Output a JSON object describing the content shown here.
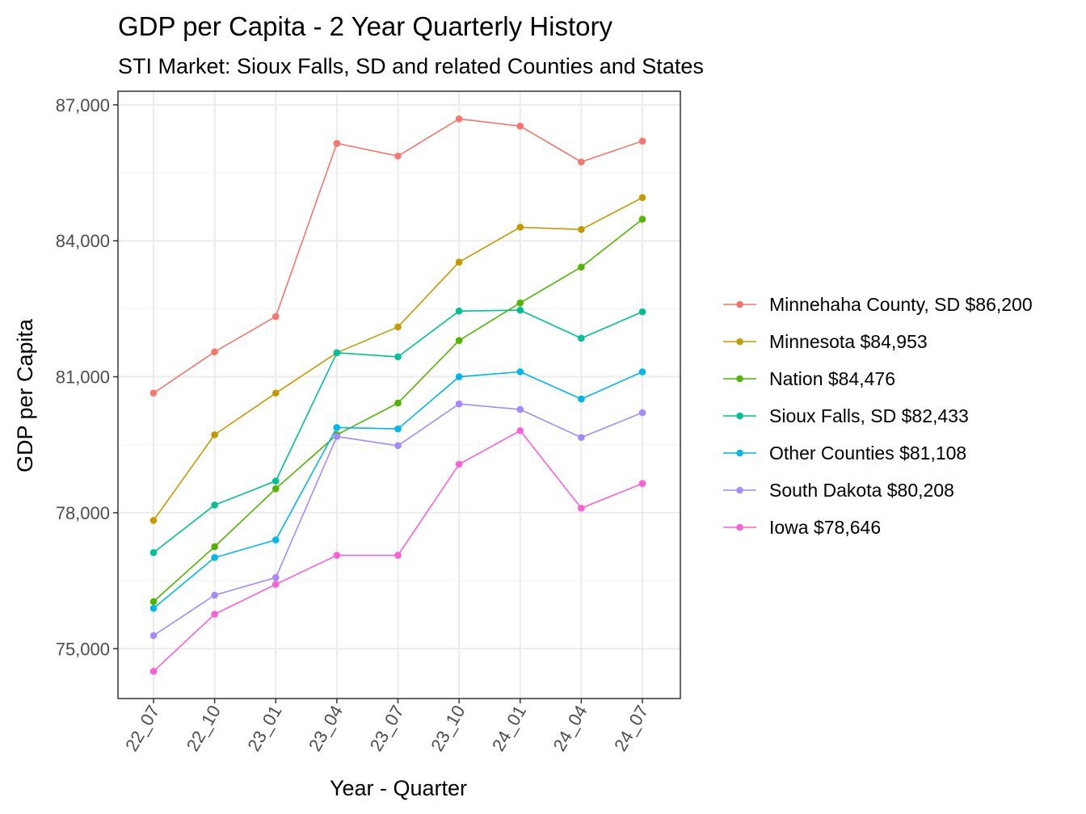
{
  "chart_data": {
    "type": "line",
    "title": "GDP per Capita - 2 Year Quarterly History",
    "subtitle": "STI Market: Sioux Falls, SD and related Counties and States",
    "xlabel": "Year - Quarter",
    "ylabel": "GDP per Capita",
    "categories": [
      "22_07",
      "22_10",
      "23_01",
      "23_04",
      "23_07",
      "23_10",
      "24_01",
      "24_04",
      "24_07"
    ],
    "ylim": [
      73900,
      87300
    ],
    "y_ticks": [
      75000,
      78000,
      81000,
      84000,
      87000
    ],
    "y_tick_labels": [
      "75,000",
      "78,000",
      "81,000",
      "84,000",
      "87,000"
    ],
    "grid": true,
    "legend_position": "right",
    "series": [
      {
        "name": "Minnehaha County, SD $86,200",
        "color": "#F8766D",
        "values": [
          80640,
          81550,
          82330,
          86150,
          85870,
          86690,
          86530,
          85740,
          86200
        ]
      },
      {
        "name": "Minnesota $84,953",
        "color": "#C49A00",
        "values": [
          77830,
          79720,
          80640,
          81530,
          82100,
          83530,
          84300,
          84250,
          84953
        ]
      },
      {
        "name": "Nation $84,476",
        "color": "#53B400",
        "values": [
          76040,
          77250,
          78530,
          79720,
          80420,
          81800,
          82630,
          83420,
          84476
        ]
      },
      {
        "name": "Sioux Falls, SD $82,433",
        "color": "#00C094",
        "values": [
          77120,
          78170,
          78700,
          81530,
          81440,
          82450,
          82470,
          81850,
          82433
        ]
      },
      {
        "name": "Other Counties $81,108",
        "color": "#00B6EB",
        "values": [
          75890,
          77010,
          77400,
          79880,
          79850,
          81000,
          81110,
          80510,
          81108
        ]
      },
      {
        "name": "South Dakota $80,208",
        "color": "#A58AFF",
        "values": [
          75290,
          76180,
          76570,
          79680,
          79480,
          80400,
          80280,
          79660,
          80208
        ]
      },
      {
        "name": "Iowa $78,646",
        "color": "#FB61D7",
        "values": [
          74500,
          75760,
          76420,
          77060,
          77060,
          79070,
          79810,
          78100,
          78646
        ]
      }
    ]
  }
}
